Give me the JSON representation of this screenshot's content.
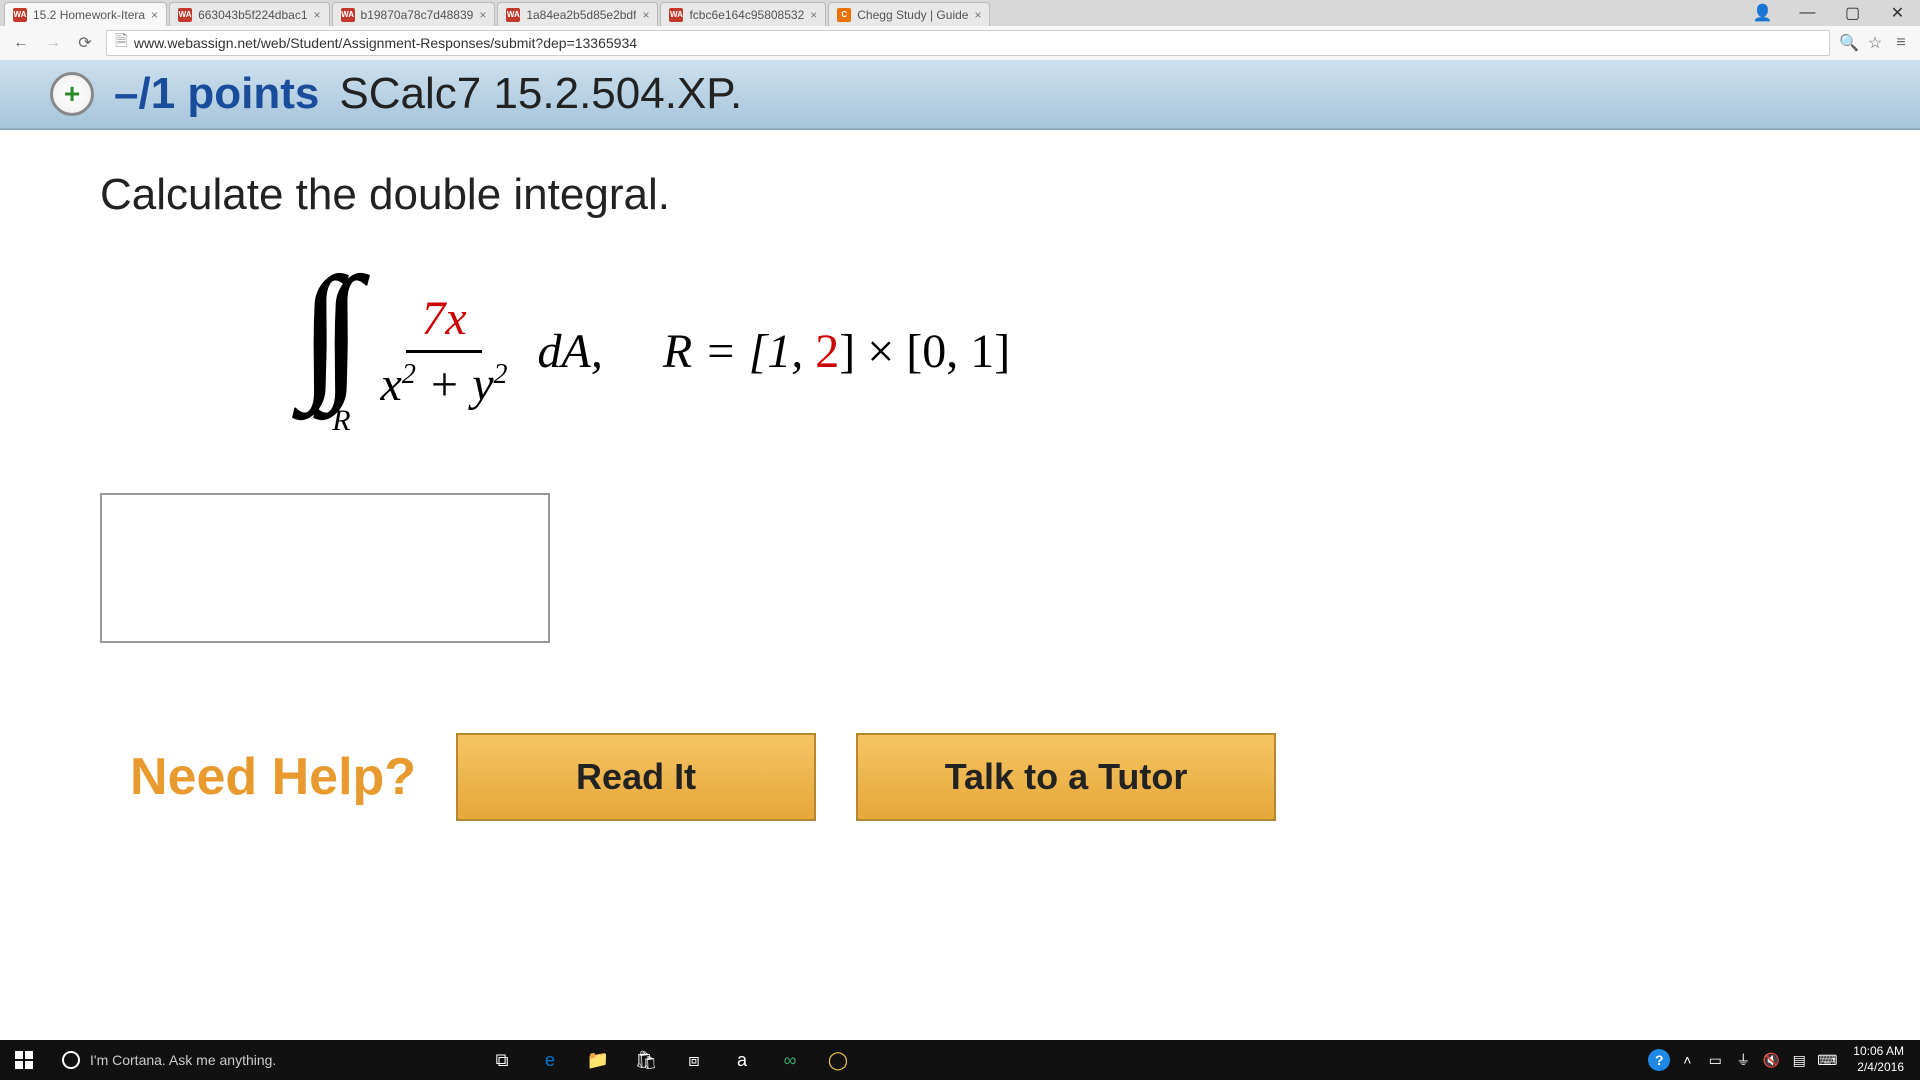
{
  "browser": {
    "tabs": [
      {
        "favicon": "WA",
        "favicon_bg": "#c0392b",
        "title": "15.2 Homework-Itera",
        "active": true
      },
      {
        "favicon": "WA",
        "favicon_bg": "#c0392b",
        "title": "663043b5f224dbac1",
        "active": false
      },
      {
        "favicon": "WA",
        "favicon_bg": "#c0392b",
        "title": "b19870a78c7d48839",
        "active": false
      },
      {
        "favicon": "WA",
        "favicon_bg": "#c0392b",
        "title": "1a84ea2b5d85e2bdf",
        "active": false
      },
      {
        "favicon": "WA",
        "favicon_bg": "#c0392b",
        "title": "fcbc6e164c95808532",
        "active": false
      },
      {
        "favicon": "C",
        "favicon_bg": "#eb7100",
        "title": "Chegg Study | Guide",
        "active": false
      }
    ],
    "url": "www.webassign.net/web/Student/Assignment-Responses/submit?dep=13365934"
  },
  "question": {
    "points_prefix": "–/1 points",
    "problem_ref": "SCalc7 15.2.504.XP.",
    "prompt": "Calculate the double integral.",
    "integral_region_sub": "R",
    "frac_num": "7x",
    "frac_den_html": "x² + y²",
    "after_frac": " dA,",
    "region_eq_prefix": "R = [1, ",
    "region_red": "2",
    "region_eq_suffix": "] × [0, 1]",
    "need_help_label": "Need Help?",
    "read_it_label": "Read It",
    "tutor_label": "Talk to a Tutor"
  },
  "taskbar": {
    "cortana_placeholder": "I'm Cortana. Ask me anything.",
    "time": "10:06 AM",
    "date": "2/4/2016",
    "icons": [
      {
        "name": "task-view",
        "glyph": "⧉",
        "color": "#ffffff"
      },
      {
        "name": "edge",
        "glyph": "e",
        "color": "#0078d7"
      },
      {
        "name": "file-explorer",
        "glyph": "📁",
        "color": "#f8d36b"
      },
      {
        "name": "store",
        "glyph": "🛍",
        "color": "#ffffff"
      },
      {
        "name": "dropbox",
        "glyph": "⧈",
        "color": "#ffffff"
      },
      {
        "name": "amazon",
        "glyph": "a",
        "color": "#ffffff"
      },
      {
        "name": "tripadvisor",
        "glyph": "∞",
        "color": "#34aa6f"
      },
      {
        "name": "chrome",
        "glyph": "◯",
        "color": "#f2c94c"
      }
    ],
    "tray": [
      {
        "name": "help-badge",
        "glyph": "?"
      },
      {
        "name": "show-hidden",
        "glyph": "˄"
      },
      {
        "name": "battery",
        "glyph": "▭"
      },
      {
        "name": "wifi",
        "glyph": "⏚"
      },
      {
        "name": "volume",
        "glyph": "🔇"
      },
      {
        "name": "action",
        "glyph": "▤"
      },
      {
        "name": "keyboard",
        "glyph": "⌨"
      }
    ]
  },
  "colors": {
    "header_bg_top": "#cde0ee",
    "header_bg_bottom": "#a7c5db",
    "points_color": "#1a4c9c",
    "help_orange": "#e89a2e",
    "red": "#cc0000",
    "btn_top": "#f5c563",
    "btn_bottom": "#e6a73a"
  }
}
